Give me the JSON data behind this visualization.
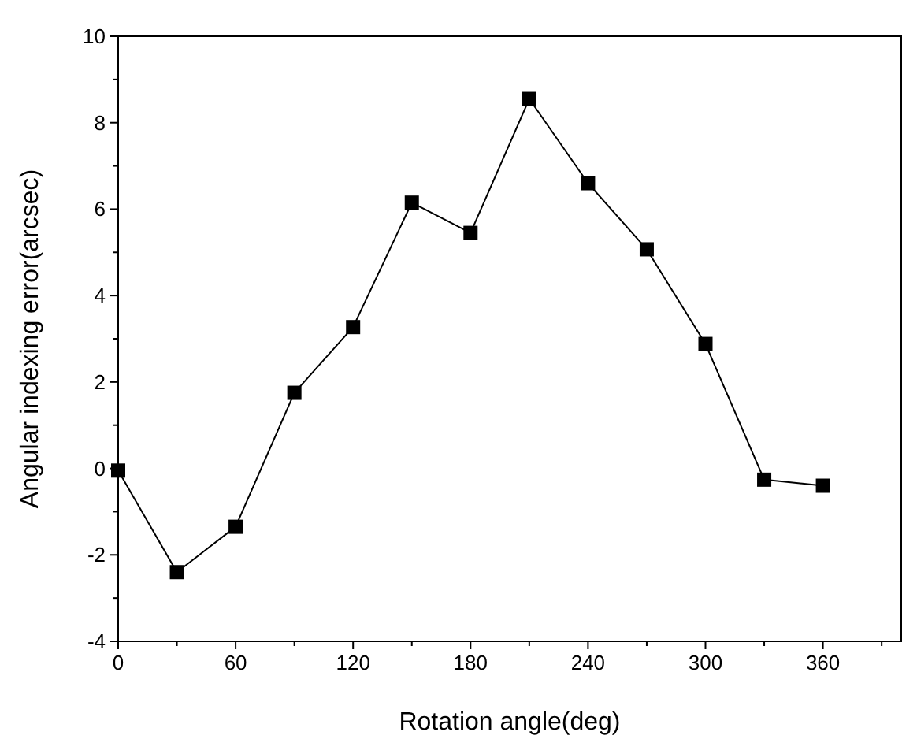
{
  "chart_data": {
    "type": "line",
    "xlabel": "Rotation angle(deg)",
    "ylabel": "Angular indexing error(arcsec)",
    "x": [
      0,
      30,
      60,
      90,
      120,
      150,
      180,
      210,
      240,
      270,
      300,
      330,
      360
    ],
    "series": [
      {
        "color": "#000000",
        "values": [
          -0.05,
          -2.4,
          -1.35,
          1.75,
          3.27,
          6.15,
          5.45,
          8.55,
          6.6,
          5.07,
          2.88,
          -0.26,
          -0.4
        ]
      }
    ],
    "xlim": [
      0,
      400
    ],
    "xticks": [
      0,
      {
        "value": 30,
        "label": null
      },
      60,
      {
        "value": 90,
        "label": null
      },
      120,
      {
        "value": 150,
        "label": null
      },
      180,
      {
        "value": 210,
        "label": null
      },
      240,
      {
        "value": 270,
        "label": null
      },
      300,
      {
        "value": 330,
        "label": null
      },
      360,
      {
        "value": 390,
        "label": null
      }
    ],
    "ylim": [
      -4,
      10
    ],
    "yticks": [
      -4,
      {
        "value": -3,
        "label": null
      },
      -2,
      {
        "value": -1,
        "label": null
      },
      0,
      {
        "value": 1,
        "label": null
      },
      2,
      {
        "value": 3,
        "label": null
      },
      4,
      {
        "value": 5,
        "label": null
      },
      6,
      {
        "value": 7,
        "label": null
      },
      8,
      {
        "value": 9,
        "label": null
      },
      10
    ],
    "marker": "square",
    "line_style": "solid",
    "grid": false
  }
}
